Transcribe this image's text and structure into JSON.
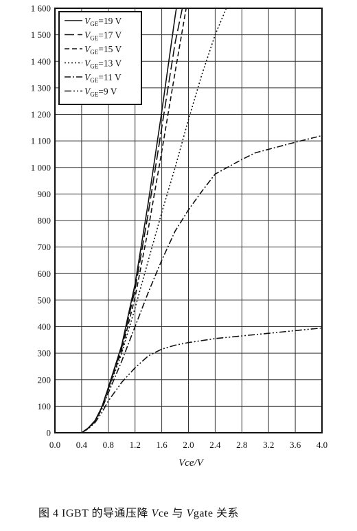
{
  "chart_data": {
    "type": "line",
    "title": "",
    "xlabel": "Vce/V",
    "ylabel": "",
    "xlim": [
      0,
      4.0
    ],
    "ylim": [
      0,
      1600
    ],
    "x_ticks": [
      "0.0",
      "0.4",
      "0.8",
      "1.2",
      "1.6",
      "2.0",
      "2.4",
      "2.8",
      "3.2",
      "3.6",
      "4.0"
    ],
    "y_ticks": [
      "0",
      "100",
      "200",
      "300",
      "400",
      "500",
      "600",
      "700",
      "800",
      "900",
      "1 000",
      "1 100",
      "1 200",
      "1 300",
      "1 400",
      "1 500",
      "1 600"
    ],
    "grid": true,
    "legend_position": "top-left",
    "legend_var": "V",
    "legend_sub": "GE",
    "series": [
      {
        "name": "=19 V",
        "dash": "solid",
        "points": [
          [
            0.4,
            0
          ],
          [
            0.5,
            18
          ],
          [
            0.6,
            45
          ],
          [
            0.7,
            95
          ],
          [
            0.8,
            170
          ],
          [
            1.0,
            330
          ],
          [
            1.2,
            560
          ],
          [
            1.4,
            870
          ],
          [
            1.6,
            1210
          ],
          [
            1.8,
            1570
          ],
          [
            1.85,
            1650
          ]
        ]
      },
      {
        "name": "=17 V",
        "dash": "longdash",
        "points": [
          [
            0.4,
            0
          ],
          [
            0.5,
            18
          ],
          [
            0.6,
            45
          ],
          [
            0.7,
            95
          ],
          [
            0.8,
            170
          ],
          [
            1.0,
            320
          ],
          [
            1.2,
            540
          ],
          [
            1.4,
            830
          ],
          [
            1.6,
            1150
          ],
          [
            1.8,
            1470
          ],
          [
            1.95,
            1650
          ]
        ]
      },
      {
        "name": "=15 V",
        "dash": "dash",
        "points": [
          [
            0.4,
            0
          ],
          [
            0.5,
            18
          ],
          [
            0.6,
            45
          ],
          [
            0.7,
            95
          ],
          [
            0.8,
            165
          ],
          [
            1.0,
            310
          ],
          [
            1.2,
            510
          ],
          [
            1.4,
            770
          ],
          [
            1.6,
            1060
          ],
          [
            1.8,
            1360
          ],
          [
            2.0,
            1650
          ]
        ]
      },
      {
        "name": "=13 V",
        "dash": "dot",
        "points": [
          [
            0.4,
            0
          ],
          [
            0.5,
            18
          ],
          [
            0.6,
            45
          ],
          [
            0.7,
            92
          ],
          [
            0.8,
            160
          ],
          [
            1.0,
            300
          ],
          [
            1.2,
            470
          ],
          [
            1.4,
            650
          ],
          [
            1.6,
            830
          ],
          [
            1.8,
            1000
          ],
          [
            2.0,
            1180
          ],
          [
            2.2,
            1350
          ],
          [
            2.4,
            1500
          ],
          [
            2.6,
            1620
          ],
          [
            2.7,
            1650
          ]
        ]
      },
      {
        "name": "=11 V",
        "dash": "dashdot",
        "points": [
          [
            0.4,
            0
          ],
          [
            0.5,
            17
          ],
          [
            0.6,
            42
          ],
          [
            0.7,
            88
          ],
          [
            0.8,
            150
          ],
          [
            1.0,
            270
          ],
          [
            1.2,
            400
          ],
          [
            1.4,
            530
          ],
          [
            1.6,
            650
          ],
          [
            1.8,
            760
          ],
          [
            2.0,
            840
          ],
          [
            2.2,
            910
          ],
          [
            2.4,
            975
          ],
          [
            2.8,
            1030
          ],
          [
            3.0,
            1055
          ],
          [
            3.6,
            1095
          ],
          [
            4.0,
            1120
          ]
        ]
      },
      {
        "name": "=9 V",
        "dash": "dashdotdot",
        "points": [
          [
            0.4,
            0
          ],
          [
            0.5,
            15
          ],
          [
            0.6,
            38
          ],
          [
            0.7,
            75
          ],
          [
            0.8,
            120
          ],
          [
            1.0,
            190
          ],
          [
            1.2,
            245
          ],
          [
            1.4,
            290
          ],
          [
            1.6,
            315
          ],
          [
            1.8,
            330
          ],
          [
            2.0,
            340
          ],
          [
            2.4,
            355
          ],
          [
            2.8,
            365
          ],
          [
            3.2,
            375
          ],
          [
            3.6,
            385
          ],
          [
            4.0,
            395
          ]
        ]
      }
    ]
  },
  "caption": {
    "prefix": "图 4    IGBT 的导通压降 ",
    "var1": "V",
    "mid1": "ce 与 ",
    "var2": "V",
    "suffix": "gate 关系"
  }
}
